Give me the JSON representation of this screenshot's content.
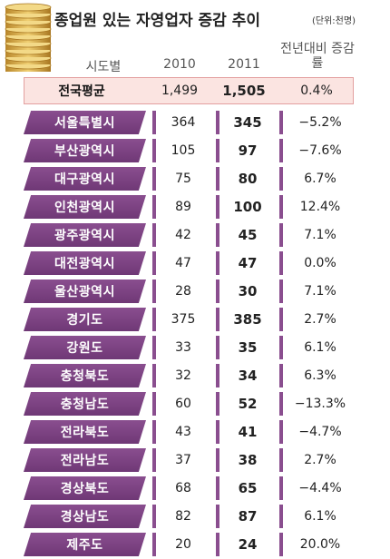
{
  "title": "종업원 있는 자영업자 증감 추이",
  "unit": "(단위:천명)",
  "chart_data": {
    "type": "table",
    "columns": [
      "시도별",
      "2010",
      "2011",
      "전년대비 증감률"
    ],
    "average": {
      "region": "전국평균",
      "v2010": "1,499",
      "v2011": "1,505",
      "change": "0.4%"
    },
    "rows": [
      {
        "region": "서울특별시",
        "v2010": 364,
        "v2011": 345,
        "change": "−5.2%"
      },
      {
        "region": "부산광역시",
        "v2010": 105,
        "v2011": 97,
        "change": "−7.6%"
      },
      {
        "region": "대구광역시",
        "v2010": 75,
        "v2011": 80,
        "change": "6.7%"
      },
      {
        "region": "인천광역시",
        "v2010": 89,
        "v2011": 100,
        "change": "12.4%"
      },
      {
        "region": "광주광역시",
        "v2010": 42,
        "v2011": 45,
        "change": "7.1%"
      },
      {
        "region": "대전광역시",
        "v2010": 47,
        "v2011": 47,
        "change": "0.0%"
      },
      {
        "region": "울산광역시",
        "v2010": 28,
        "v2011": 30,
        "change": "7.1%"
      },
      {
        "region": "경기도",
        "v2010": 375,
        "v2011": 385,
        "change": "2.7%"
      },
      {
        "region": "강원도",
        "v2010": 33,
        "v2011": 35,
        "change": "6.1%"
      },
      {
        "region": "충청북도",
        "v2010": 32,
        "v2011": 34,
        "change": "6.3%"
      },
      {
        "region": "충청남도",
        "v2010": 60,
        "v2011": 52,
        "change": "−13.3%"
      },
      {
        "region": "전라북도",
        "v2010": 43,
        "v2011": 41,
        "change": "−4.7%"
      },
      {
        "region": "전라남도",
        "v2010": 37,
        "v2011": 38,
        "change": "2.7%"
      },
      {
        "region": "경상북도",
        "v2010": 68,
        "v2011": 65,
        "change": "−4.4%"
      },
      {
        "region": "경상남도",
        "v2010": 82,
        "v2011": 87,
        "change": "6.1%"
      },
      {
        "region": "제주도",
        "v2010": 20,
        "v2011": 24,
        "change": "20.0%"
      }
    ]
  },
  "colors": {
    "region_bar": "#7b4282",
    "avg_bg": "#fbe4e1",
    "coin": "#d9a83a"
  },
  "decor": {
    "icon": "coin-stack-icon"
  }
}
